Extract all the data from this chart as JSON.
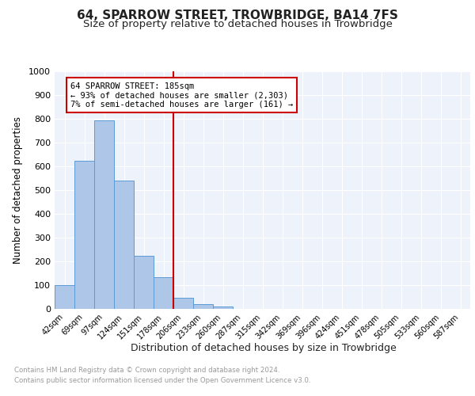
{
  "title": "64, SPARROW STREET, TROWBRIDGE, BA14 7FS",
  "subtitle": "Size of property relative to detached houses in Trowbridge",
  "xlabel": "Distribution of detached houses by size in Trowbridge",
  "ylabel": "Number of detached properties",
  "bin_labels": [
    "42sqm",
    "69sqm",
    "97sqm",
    "124sqm",
    "151sqm",
    "178sqm",
    "206sqm",
    "233sqm",
    "260sqm",
    "287sqm",
    "315sqm",
    "342sqm",
    "369sqm",
    "396sqm",
    "424sqm",
    "451sqm",
    "478sqm",
    "505sqm",
    "533sqm",
    "560sqm",
    "587sqm"
  ],
  "bar_values": [
    101,
    625,
    793,
    541,
    224,
    133,
    46,
    20,
    11,
    0,
    0,
    0,
    0,
    0,
    0,
    0,
    0,
    0,
    0,
    0,
    0
  ],
  "bar_color": "#aec6e8",
  "bar_edge_color": "#5b9bd5",
  "property_bin_index": 5,
  "vline_color": "#cc0000",
  "annotation_line1": "64 SPARROW STREET: 185sqm",
  "annotation_line2": "← 93% of detached houses are smaller (2,303)",
  "annotation_line3": "7% of semi-detached houses are larger (161) →",
  "annotation_box_color": "#ffffff",
  "annotation_box_edge_color": "#cc0000",
  "footer_line1": "Contains HM Land Registry data © Crown copyright and database right 2024.",
  "footer_line2": "Contains public sector information licensed under the Open Government Licence v3.0.",
  "ylim": [
    0,
    1000
  ],
  "yticks": [
    0,
    100,
    200,
    300,
    400,
    500,
    600,
    700,
    800,
    900,
    1000
  ],
  "bg_color": "#eef2fa",
  "grid_color": "#ffffff",
  "title_fontsize": 11,
  "subtitle_fontsize": 9.5
}
